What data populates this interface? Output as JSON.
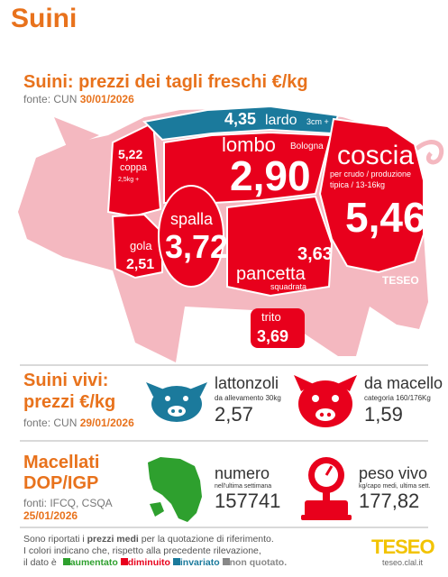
{
  "title": "Suini",
  "fresh": {
    "heading": "Suini: prezzi dei tagli freschi €/kg",
    "source_prefix": "fonte: CUN ",
    "source_date": "30/01/2026",
    "cuts": {
      "lardo": {
        "value": "4,35",
        "name": "lardo",
        "note": "3cm +"
      },
      "lombo": {
        "name": "lombo",
        "note": "Bologna",
        "value": "2,90"
      },
      "coscia": {
        "name": "coscia",
        "note1": "per crudo / produzione",
        "note2": "tipica / 13-16kg",
        "value": "5,46"
      },
      "coppa": {
        "value": "5,22",
        "name": "coppa",
        "note": "2,5kg +"
      },
      "spalla": {
        "name": "spalla",
        "value": "3,72"
      },
      "gola": {
        "name": "gola",
        "value": "2,51"
      },
      "pancetta": {
        "value": "3,63",
        "name": "pancetta",
        "note": "squadrata"
      },
      "trito": {
        "name": "trito",
        "value": "3,69"
      }
    },
    "watermark": "TESEO"
  },
  "live": {
    "heading_line1": "Suini vivi:",
    "heading_line2": "prezzi €/kg",
    "source_prefix": "fonte: CUN ",
    "source_date": "29/01/2026",
    "lattonzoli": {
      "name": "lattonzoli",
      "note": "da allevamento 30kg",
      "value": "2,57"
    },
    "macello": {
      "name": "da macello",
      "note": "categoria 160/176Kg",
      "value": "1,59"
    }
  },
  "dop": {
    "heading_line1": "Macellati",
    "heading_line2": "DOP/IGP",
    "sources": "fonti: IFCQ, CSQA",
    "date": "25/01/2026",
    "numero": {
      "name": "numero",
      "note": "nell'ultima settimana",
      "value": "157741"
    },
    "peso": {
      "name": "peso vivo",
      "note": "kg/capo medi, ultima sett.",
      "value": "177,82"
    }
  },
  "footer": {
    "line1_a": "Sono riportati i ",
    "line1_b": "prezzi medi",
    "line1_c": " per la quotazione di riferimento.",
    "line2": "I colori indicano che, rispetto alla precedente rilevazione,",
    "line3": "il dato è",
    "legend": [
      {
        "label": "aumentato",
        "color": "#2ea02e"
      },
      {
        "label": "diminuito",
        "color": "#e8001c"
      },
      {
        "label": "invariato",
        "color": "#1b7a9c"
      },
      {
        "label": "non quotato.",
        "color": "#888888"
      }
    ],
    "logo": "TESEO",
    "logo_url": "teseo.clal.it"
  },
  "colors": {
    "up": "#2ea02e",
    "down": "#e8001c",
    "same": "#1b7a9c",
    "accent": "#e8721c",
    "pig_body": "#f4b8c0"
  }
}
